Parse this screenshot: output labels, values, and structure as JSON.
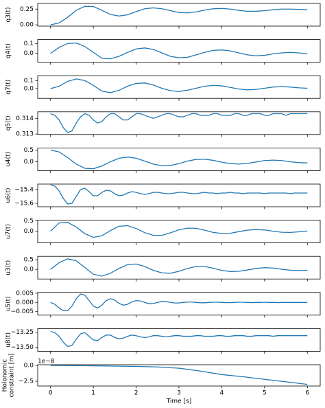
{
  "chart_data": [
    {
      "type": "line",
      "ylabel": "q3(t)",
      "color": "#1f77b4",
      "x": [
        0,
        0.2,
        0.4,
        0.6,
        0.8,
        1.0,
        1.2,
        1.4,
        1.6,
        1.8,
        2.0,
        2.2,
        2.4,
        2.6,
        2.8,
        3.0,
        3.2,
        3.4,
        3.6,
        3.8,
        4.0,
        4.2,
        4.4,
        4.6,
        4.8,
        5.0,
        5.2,
        5.4,
        5.6,
        5.8,
        6.0
      ],
      "values": [
        0,
        0.03,
        0.12,
        0.23,
        0.295,
        0.29,
        0.23,
        0.165,
        0.14,
        0.16,
        0.21,
        0.255,
        0.27,
        0.255,
        0.225,
        0.195,
        0.19,
        0.205,
        0.235,
        0.255,
        0.26,
        0.25,
        0.23,
        0.215,
        0.215,
        0.225,
        0.24,
        0.25,
        0.25,
        0.245,
        0.24
      ],
      "xlim": [
        -0.3,
        6.3
      ],
      "xticks": [
        0,
        1,
        2,
        3,
        4,
        5,
        6
      ],
      "ylim": [
        -0.02,
        0.34
      ],
      "yticks": [
        {
          "value": 0,
          "label": "0.00"
        },
        0.25
      ]
    },
    {
      "type": "line",
      "ylabel": "q4(t)",
      "color": "#1f77b4",
      "x": [
        0,
        0.2,
        0.4,
        0.6,
        0.8,
        1.0,
        1.2,
        1.4,
        1.6,
        1.8,
        2.0,
        2.2,
        2.4,
        2.6,
        2.8,
        3.0,
        3.2,
        3.4,
        3.6,
        3.8,
        4.0,
        4.2,
        4.4,
        4.6,
        4.8,
        5.0,
        5.2,
        5.4,
        5.6,
        5.8,
        6.0
      ],
      "values": [
        0,
        0.06,
        0.1,
        0.105,
        0.07,
        0.01,
        -0.05,
        -0.055,
        -0.03,
        0.01,
        0.045,
        0.055,
        0.04,
        0.005,
        -0.03,
        -0.045,
        -0.04,
        -0.015,
        0.01,
        0.03,
        0.035,
        0.025,
        0.005,
        -0.015,
        -0.025,
        -0.02,
        -0.005,
        0.005,
        0.01,
        0.005,
        -0.005
      ],
      "xlim": [
        -0.3,
        6.3
      ],
      "xticks": [
        0,
        1,
        2,
        3,
        4,
        5,
        6
      ],
      "ylim": [
        -0.09,
        0.14
      ],
      "yticks": [
        {
          "value": 0,
          "label": "0.0"
        },
        0.1
      ]
    },
    {
      "type": "line",
      "ylabel": "q7(t)",
      "color": "#1f77b4",
      "x": [
        0,
        0.2,
        0.4,
        0.6,
        0.8,
        1.0,
        1.2,
        1.4,
        1.6,
        1.8,
        2.0,
        2.2,
        2.4,
        2.6,
        2.8,
        3.0,
        3.2,
        3.4,
        3.6,
        3.8,
        4.0,
        4.2,
        4.4,
        4.6,
        4.8,
        5.0,
        5.2,
        5.4,
        5.6,
        5.8,
        6.0
      ],
      "values": [
        0,
        0.03,
        0.09,
        0.12,
        0.1,
        0.04,
        -0.03,
        -0.05,
        -0.02,
        0.03,
        0.065,
        0.07,
        0.045,
        0.005,
        -0.025,
        -0.035,
        -0.02,
        0.005,
        0.03,
        0.04,
        0.035,
        0.015,
        -0.005,
        -0.015,
        -0.01,
        0.005,
        0.02,
        0.025,
        0.02,
        0.01,
        0.005
      ],
      "xlim": [
        -0.3,
        6.3
      ],
      "xticks": [
        0,
        1,
        2,
        3,
        4,
        5,
        6
      ],
      "ylim": [
        -0.12,
        0.16
      ],
      "yticks": [
        {
          "value": 0,
          "label": "0.0"
        },
        0.1
      ]
    },
    {
      "type": "line",
      "ylabel": "q5(t)",
      "color": "#1f77b4",
      "x": [
        0,
        0.1,
        0.2,
        0.3,
        0.4,
        0.5,
        0.6,
        0.7,
        0.8,
        0.9,
        1.0,
        1.1,
        1.2,
        1.3,
        1.4,
        1.5,
        1.6,
        1.7,
        1.8,
        1.9,
        2.0,
        2.1,
        2.2,
        2.3,
        2.4,
        2.5,
        2.6,
        2.7,
        2.8,
        2.9,
        3.0,
        3.1,
        3.2,
        3.3,
        3.4,
        3.5,
        3.6,
        3.7,
        3.8,
        3.9,
        4.0,
        4.1,
        4.2,
        4.3,
        4.4,
        4.5,
        4.6,
        4.7,
        4.8,
        4.9,
        5.0,
        5.1,
        5.2,
        5.3,
        5.4,
        5.5,
        5.6,
        5.7,
        5.8,
        5.9,
        6.0
      ],
      "values": [
        0.3143,
        0.3142,
        0.3139,
        0.3134,
        0.3131,
        0.3132,
        0.3137,
        0.3141,
        0.3143,
        0.3142,
        0.3139,
        0.3137,
        0.3138,
        0.3141,
        0.3143,
        0.3143,
        0.3141,
        0.3139,
        0.3139,
        0.3141,
        0.3143,
        0.3143,
        0.3142,
        0.3141,
        0.314,
        0.3141,
        0.3142,
        0.3143,
        0.3143,
        0.3142,
        0.3141,
        0.3141,
        0.3142,
        0.3143,
        0.3143,
        0.3142,
        0.3142,
        0.3142,
        0.3143,
        0.3143,
        0.3142,
        0.3142,
        0.3142,
        0.3143,
        0.3143,
        0.3142,
        0.3142,
        0.3143,
        0.3143,
        0.3143,
        0.3142,
        0.3142,
        0.3143,
        0.3143,
        0.3143,
        0.3142,
        0.3143,
        0.3143,
        0.3143,
        0.3143,
        0.3143
      ],
      "xlim": [
        -0.3,
        6.3
      ],
      "xticks": [
        0,
        1,
        2,
        3,
        4,
        5,
        6
      ],
      "ylim": [
        0.31297,
        0.31442
      ],
      "yticks": [
        0.313,
        0.314
      ]
    },
    {
      "type": "line",
      "ylabel": "u4(t)",
      "color": "#1f77b4",
      "x": [
        0,
        0.2,
        0.4,
        0.6,
        0.8,
        1.0,
        1.2,
        1.4,
        1.6,
        1.8,
        2.0,
        2.2,
        2.4,
        2.6,
        2.8,
        3.0,
        3.2,
        3.4,
        3.6,
        3.8,
        4.0,
        4.2,
        4.4,
        4.6,
        4.8,
        5.0,
        5.2,
        5.4,
        5.6,
        5.8,
        6.0
      ],
      "values": [
        0.5,
        0.42,
        0.18,
        -0.1,
        -0.28,
        -0.3,
        -0.18,
        0,
        0.15,
        0.2,
        0.15,
        0.03,
        -0.1,
        -0.17,
        -0.16,
        -0.08,
        0.03,
        0.1,
        0.11,
        0.06,
        -0.02,
        -0.08,
        -0.1,
        -0.07,
        -0.01,
        0.05,
        0.07,
        0.05,
        0,
        -0.04,
        -0.05
      ],
      "xlim": [
        -0.3,
        6.3
      ],
      "xticks": [
        0,
        1,
        2,
        3,
        4,
        5,
        6
      ],
      "ylim": [
        -0.38,
        0.59
      ],
      "yticks": [
        {
          "value": 0,
          "label": "0.0"
        },
        0.5
      ]
    },
    {
      "type": "line",
      "ylabel": "u6(t)",
      "color": "#1f77b4",
      "x": [
        0,
        0.1,
        0.2,
        0.3,
        0.4,
        0.5,
        0.6,
        0.7,
        0.8,
        0.9,
        1.0,
        1.1,
        1.2,
        1.3,
        1.4,
        1.5,
        1.6,
        1.7,
        1.8,
        1.9,
        2.0,
        2.1,
        2.2,
        2.3,
        2.4,
        2.5,
        2.6,
        2.7,
        2.8,
        2.9,
        3.0,
        3.1,
        3.2,
        3.3,
        3.4,
        3.5,
        3.6,
        3.7,
        3.8,
        3.9,
        4.0,
        4.1,
        4.2,
        4.3,
        4.4,
        4.5,
        4.6,
        4.7,
        4.8,
        4.9,
        5.0,
        5.1,
        5.2,
        5.3,
        5.4,
        5.5,
        5.6,
        5.7,
        5.8,
        5.9,
        6.0
      ],
      "values": [
        -15.33,
        -15.35,
        -15.42,
        -15.53,
        -15.61,
        -15.6,
        -15.5,
        -15.4,
        -15.38,
        -15.43,
        -15.49,
        -15.49,
        -15.44,
        -15.41,
        -15.42,
        -15.46,
        -15.49,
        -15.48,
        -15.45,
        -15.43,
        -15.44,
        -15.46,
        -15.47,
        -15.46,
        -15.44,
        -15.44,
        -15.45,
        -15.46,
        -15.46,
        -15.45,
        -15.44,
        -15.44,
        -15.45,
        -15.46,
        -15.46,
        -15.45,
        -15.44,
        -15.45,
        -15.45,
        -15.46,
        -15.45,
        -15.45,
        -15.44,
        -15.45,
        -15.45,
        -15.46,
        -15.45,
        -15.45,
        -15.45,
        -15.45,
        -15.46,
        -15.45,
        -15.45,
        -15.45,
        -15.45,
        -15.45,
        -15.46,
        -15.45,
        -15.45,
        -15.45,
        -15.45
      ],
      "xlim": [
        -0.3,
        6.3
      ],
      "xticks": [
        0,
        1,
        2,
        3,
        4,
        5,
        6
      ],
      "ylim": [
        -15.65,
        -15.32
      ],
      "yticks": [
        {
          "value": -15.6,
          "label": "−15.6"
        },
        {
          "value": -15.4,
          "label": "−15.4"
        }
      ]
    },
    {
      "type": "line",
      "ylabel": "u7(t)",
      "color": "#1f77b4",
      "x": [
        0,
        0.2,
        0.4,
        0.6,
        0.8,
        1.0,
        1.2,
        1.4,
        1.6,
        1.8,
        2.0,
        2.2,
        2.4,
        2.6,
        2.8,
        3.0,
        3.2,
        3.4,
        3.6,
        3.8,
        4.0,
        4.2,
        4.4,
        4.6,
        4.8,
        5.0,
        5.2,
        5.4,
        5.6,
        5.8,
        6.0
      ],
      "values": [
        0,
        0.4,
        0.43,
        0.2,
        -0.12,
        -0.3,
        -0.22,
        0.03,
        0.24,
        0.27,
        0.13,
        -0.07,
        -0.2,
        -0.2,
        -0.08,
        0.07,
        0.15,
        0.14,
        0.05,
        -0.06,
        -0.11,
        -0.1,
        -0.02,
        0.05,
        0.08,
        0.06,
        0,
        -0.05,
        -0.06,
        -0.03,
        0.01
      ],
      "xlim": [
        -0.3,
        6.3
      ],
      "xticks": [
        0,
        1,
        2,
        3,
        4,
        5,
        6
      ],
      "ylim": [
        -0.567,
        0.533
      ],
      "yticks": [
        {
          "value": 0,
          "label": "0.0"
        },
        0.5
      ]
    },
    {
      "type": "line",
      "ylabel": "u3(t)",
      "color": "#1f77b4",
      "x": [
        0,
        0.2,
        0.4,
        0.6,
        0.8,
        1.0,
        1.2,
        1.4,
        1.6,
        1.8,
        2.0,
        2.2,
        2.4,
        2.6,
        2.8,
        3.0,
        3.2,
        3.4,
        3.6,
        3.8,
        4.0,
        4.2,
        4.4,
        4.6,
        4.8,
        5.0,
        5.2,
        5.4,
        5.6,
        5.8,
        6.0
      ],
      "values": [
        0,
        0.35,
        0.55,
        0.45,
        0.1,
        -0.25,
        -0.35,
        -0.2,
        0.05,
        0.25,
        0.28,
        0.15,
        -0.05,
        -0.18,
        -0.2,
        -0.1,
        0.05,
        0.15,
        0.15,
        0.06,
        -0.05,
        -0.11,
        -0.1,
        -0.03,
        0.05,
        0.09,
        0.07,
        0.01,
        -0.04,
        -0.06,
        -0.04
      ],
      "xlim": [
        -0.3,
        6.3
      ],
      "xticks": [
        0,
        1,
        2,
        3,
        4,
        5,
        6
      ],
      "ylim": [
        -0.5,
        0.68
      ],
      "yticks": [
        {
          "value": 0,
          "label": "0.0"
        },
        0.5
      ]
    },
    {
      "type": "line",
      "ylabel": "u5(t)",
      "color": "#1f77b4",
      "x": [
        0,
        0.1,
        0.2,
        0.3,
        0.4,
        0.5,
        0.6,
        0.7,
        0.8,
        0.9,
        1.0,
        1.1,
        1.2,
        1.3,
        1.4,
        1.5,
        1.6,
        1.7,
        1.8,
        1.9,
        2.0,
        2.1,
        2.2,
        2.3,
        2.4,
        2.5,
        2.6,
        2.7,
        2.8,
        2.9,
        3.0,
        3.1,
        3.2,
        3.3,
        3.4,
        3.5,
        3.6,
        3.7,
        3.8,
        3.9,
        4.0,
        4.1,
        4.2,
        4.3,
        4.4,
        4.5,
        4.6,
        4.7,
        4.8,
        4.9,
        5.0,
        5.1,
        5.2,
        5.3,
        5.4,
        5.5,
        5.6,
        5.7,
        5.8,
        5.9,
        6.0
      ],
      "values": [
        0,
        -0.001,
        -0.003,
        -0.0045,
        -0.0045,
        -0.002,
        0.002,
        0.0045,
        0.004,
        0.001,
        -0.002,
        -0.003,
        -0.0015,
        0.001,
        0.002,
        0.0012,
        -0.0005,
        -0.0015,
        -0.001,
        0.0003,
        0.001,
        0.0008,
        0,
        -0.0007,
        -0.0006,
        0,
        0.0005,
        0.0004,
        0,
        -0.0003,
        -0.0003,
        0,
        0.0002,
        0.0002,
        0,
        -0.0002,
        -0.0002,
        0,
        0.0001,
        0.0001,
        0,
        -0.0001,
        -0.0001,
        0,
        0.0001,
        0.0001,
        0,
        -0.0001,
        0,
        0,
        0.0001,
        0,
        0,
        -0.0001,
        0,
        0,
        0,
        0,
        0,
        0,
        0
      ],
      "xlim": [
        -0.3,
        6.3
      ],
      "xticks": [
        0,
        1,
        2,
        3,
        4,
        5,
        6
      ],
      "ylim": [
        -0.0069,
        0.0054
      ],
      "yticks": [
        {
          "value": -0.005,
          "label": "−0.005"
        },
        {
          "value": 0,
          "label": "0.000"
        },
        0.005
      ]
    },
    {
      "type": "line",
      "ylabel": "u8(t)",
      "color": "#1f77b4",
      "x": [
        0,
        0.1,
        0.2,
        0.3,
        0.4,
        0.5,
        0.6,
        0.7,
        0.8,
        0.9,
        1.0,
        1.1,
        1.2,
        1.3,
        1.4,
        1.5,
        1.6,
        1.7,
        1.8,
        1.9,
        2.0,
        2.1,
        2.2,
        2.3,
        2.4,
        2.5,
        2.6,
        2.7,
        2.8,
        2.9,
        3.0,
        3.1,
        3.2,
        3.3,
        3.4,
        3.5,
        3.6,
        3.7,
        3.8,
        3.9,
        4.0,
        4.1,
        4.2,
        4.3,
        4.4,
        4.5,
        4.6,
        4.7,
        4.8,
        4.9,
        5.0,
        5.1,
        5.2,
        5.3,
        5.4,
        5.5,
        5.6,
        5.7,
        5.8,
        5.9,
        6.0
      ],
      "values": [
        -13.24,
        -13.26,
        -13.32,
        -13.42,
        -13.49,
        -13.47,
        -13.37,
        -13.28,
        -13.26,
        -13.32,
        -13.38,
        -13.39,
        -13.34,
        -13.3,
        -13.3,
        -13.34,
        -13.36,
        -13.35,
        -13.32,
        -13.3,
        -13.31,
        -13.33,
        -13.34,
        -13.33,
        -13.31,
        -13.31,
        -13.32,
        -13.33,
        -13.32,
        -13.31,
        -13.31,
        -13.32,
        -13.32,
        -13.32,
        -13.31,
        -13.31,
        -13.32,
        -13.32,
        -13.32,
        -13.31,
        -13.31,
        -13.32,
        -13.32,
        -13.31,
        -13.31,
        -13.31,
        -13.32,
        -13.32,
        -13.31,
        -13.31,
        -13.31,
        -13.31,
        -13.32,
        -13.31,
        -13.31,
        -13.31,
        -13.31,
        -13.31,
        -13.31,
        -13.31,
        -13.31
      ],
      "xlim": [
        -0.3,
        6.3
      ],
      "xticks": [
        0,
        1,
        2,
        3,
        4,
        5,
        6
      ],
      "ylim": [
        -13.568,
        -13.193
      ],
      "yticks": [
        {
          "value": -13.5,
          "label": "−13.50"
        },
        {
          "value": -13.25,
          "label": "−13.25"
        }
      ]
    },
    {
      "type": "line",
      "ylabel": [
        "Holonomic",
        "constraint [m]"
      ],
      "xlabel": "Time [s]",
      "offset_text": "1e−8",
      "color": "#1f77b4",
      "x": [
        0,
        0.5,
        1.0,
        1.5,
        2.0,
        2.5,
        3.0,
        3.5,
        4.0,
        4.5,
        5.0,
        5.5,
        6.0
      ],
      "values": [
        0,
        -0.03,
        -0.07,
        -0.12,
        -0.17,
        -0.25,
        -0.45,
        -0.9,
        -1.45,
        -1.8,
        -2.2,
        -2.6,
        -3.0
      ],
      "xlim": [
        -0.3,
        6.3
      ],
      "xticks": [
        0,
        1,
        2,
        3,
        4,
        5,
        6
      ],
      "ylim": [
        -3.26,
        0.1
      ],
      "yticks": [
        {
          "value": -2.5,
          "label": "−2.5"
        },
        {
          "value": 0,
          "label": "0.0"
        }
      ]
    }
  ]
}
